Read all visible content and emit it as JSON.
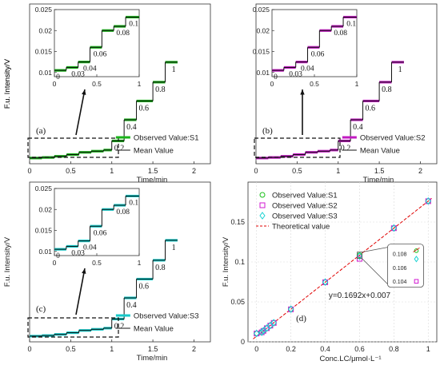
{
  "chart_data": [
    {
      "id": "a",
      "type": "line",
      "panel_label": "(a)",
      "xlabel": "Time/min",
      "ylabel": "F.u. Intensity/V",
      "xlim": [
        0,
        2.2
      ],
      "ylim": [
        0,
        0.28
      ],
      "xticks": [
        0,
        0.5,
        1,
        1.5,
        2
      ],
      "xtick_labels": [
        "0",
        "0.5",
        "1",
        "1.5",
        "2"
      ],
      "color": "#19b319",
      "legend": [
        "Observed Value:S1",
        "Mean Value"
      ],
      "legend_position": "lower-right",
      "segments": [
        {
          "x": [
            0.0,
            0.15
          ],
          "y": 0.01
        },
        {
          "x": [
            0.15,
            0.3
          ],
          "y": 0.011
        },
        {
          "x": [
            0.3,
            0.45
          ],
          "y": 0.013
        },
        {
          "x": [
            0.45,
            0.6
          ],
          "y": 0.016
        },
        {
          "x": [
            0.6,
            0.75
          ],
          "y": 0.02
        },
        {
          "x": [
            0.75,
            0.9
          ],
          "y": 0.022
        },
        {
          "x": [
            0.9,
            1.0
          ],
          "y": 0.024
        },
        {
          "x": [
            1.0,
            1.15
          ],
          "y": 0.04
        },
        {
          "x": [
            1.15,
            1.3
          ],
          "y": 0.077
        },
        {
          "x": [
            1.3,
            1.5
          ],
          "y": 0.11
        },
        {
          "x": [
            1.5,
            1.65
          ],
          "y": 0.143
        },
        {
          "x": [
            1.65,
            1.8
          ],
          "y": 0.178
        }
      ],
      "step_labels": [
        {
          "text": "0.2",
          "x": 1.0,
          "y": 0.04
        },
        {
          "text": "0.4",
          "x": 1.15,
          "y": 0.077
        },
        {
          "text": "0.6",
          "x": 1.3,
          "y": 0.11
        },
        {
          "text": "0.8",
          "x": 1.5,
          "y": 0.143
        },
        {
          "text": "1",
          "x": 1.7,
          "y": 0.178
        }
      ],
      "inset": {
        "xlim": [
          0,
          1
        ],
        "ylim": [
          0.009,
          0.025
        ],
        "xticks": [
          0,
          0.5,
          1
        ],
        "xtick_labels": [
          "0",
          "0.5",
          "1"
        ],
        "yticks": [
          0.01,
          0.015,
          0.02,
          0.025
        ],
        "ytick_labels": [
          "0.01",
          "0.015",
          "0.02",
          "0.025"
        ],
        "segments": [
          {
            "x": [
              0.0,
              0.14
            ],
            "y": 0.0105
          },
          {
            "x": [
              0.14,
              0.28
            ],
            "y": 0.0112
          },
          {
            "x": [
              0.28,
              0.42
            ],
            "y": 0.0125
          },
          {
            "x": [
              0.42,
              0.56
            ],
            "y": 0.016
          },
          {
            "x": [
              0.56,
              0.7
            ],
            "y": 0.02
          },
          {
            "x": [
              0.7,
              0.84
            ],
            "y": 0.021
          },
          {
            "x": [
              0.84,
              1.0
            ],
            "y": 0.0232
          }
        ],
        "labels": [
          {
            "text": "0",
            "x": 0.02,
            "y": 0.0105
          },
          {
            "text": "0.03",
            "x": 0.2,
            "y": 0.0112
          },
          {
            "text": "0.04",
            "x": 0.34,
            "y": 0.0125
          },
          {
            "text": "0.06",
            "x": 0.46,
            "y": 0.016
          },
          {
            "text": "0.08",
            "x": 0.73,
            "y": 0.021
          },
          {
            "text": "0.1",
            "x": 0.88,
            "y": 0.0232
          }
        ]
      }
    },
    {
      "id": "b",
      "type": "line",
      "panel_label": "(b)",
      "xlabel": "Time/min",
      "ylabel": "F.u. Intensity/V",
      "xlim": [
        0,
        2.2
      ],
      "ylim": [
        0,
        0.28
      ],
      "xticks": [
        0,
        0.5,
        1,
        1.5,
        2
      ],
      "xtick_labels": [
        "0",
        "0.5",
        "1",
        "1.5",
        "2"
      ],
      "color": "#c21ac2",
      "legend": [
        "Observed Value:S2",
        "Mean Value"
      ],
      "legend_position": "lower-right",
      "segments": [
        {
          "x": [
            0.0,
            0.15
          ],
          "y": 0.01
        },
        {
          "x": [
            0.15,
            0.3
          ],
          "y": 0.011
        },
        {
          "x": [
            0.3,
            0.45
          ],
          "y": 0.013
        },
        {
          "x": [
            0.45,
            0.6
          ],
          "y": 0.016
        },
        {
          "x": [
            0.6,
            0.75
          ],
          "y": 0.02
        },
        {
          "x": [
            0.75,
            0.9
          ],
          "y": 0.022
        },
        {
          "x": [
            0.9,
            1.0
          ],
          "y": 0.024
        },
        {
          "x": [
            1.0,
            1.15
          ],
          "y": 0.04
        },
        {
          "x": [
            1.15,
            1.3
          ],
          "y": 0.077
        },
        {
          "x": [
            1.3,
            1.5
          ],
          "y": 0.11
        },
        {
          "x": [
            1.5,
            1.65
          ],
          "y": 0.143
        },
        {
          "x": [
            1.65,
            1.8
          ],
          "y": 0.178
        }
      ],
      "step_labels": [
        {
          "text": "0.2",
          "x": 1.0,
          "y": 0.04
        },
        {
          "text": "0.4",
          "x": 1.15,
          "y": 0.077
        },
        {
          "text": "0.6",
          "x": 1.3,
          "y": 0.11
        },
        {
          "text": "0.8",
          "x": 1.5,
          "y": 0.143
        },
        {
          "text": "1",
          "x": 1.7,
          "y": 0.178
        }
      ],
      "inset": {
        "xlim": [
          0,
          1
        ],
        "ylim": [
          0.009,
          0.025
        ],
        "xticks": [
          0,
          0.5,
          1
        ],
        "xtick_labels": [
          "0",
          "0.5",
          "1"
        ],
        "yticks": [
          0.01,
          0.015,
          0.02,
          0.025
        ],
        "ytick_labels": [
          "0.01",
          "0.015",
          "0.02",
          "0.025"
        ],
        "segments": [
          {
            "x": [
              0.0,
              0.14
            ],
            "y": 0.0105
          },
          {
            "x": [
              0.14,
              0.28
            ],
            "y": 0.0112
          },
          {
            "x": [
              0.28,
              0.42
            ],
            "y": 0.0125
          },
          {
            "x": [
              0.42,
              0.56
            ],
            "y": 0.016
          },
          {
            "x": [
              0.56,
              0.7
            ],
            "y": 0.02
          },
          {
            "x": [
              0.7,
              0.84
            ],
            "y": 0.021
          },
          {
            "x": [
              0.84,
              1.0
            ],
            "y": 0.0232
          }
        ],
        "labels": [
          {
            "text": "0",
            "x": 0.02,
            "y": 0.0105
          },
          {
            "text": "0.03",
            "x": 0.2,
            "y": 0.0112
          },
          {
            "text": "0.04",
            "x": 0.34,
            "y": 0.0125
          },
          {
            "text": "0.06",
            "x": 0.46,
            "y": 0.016
          },
          {
            "text": "0.08",
            "x": 0.73,
            "y": 0.021
          },
          {
            "text": "0.1",
            "x": 0.88,
            "y": 0.0232
          }
        ]
      }
    },
    {
      "id": "c",
      "type": "line",
      "panel_label": "(c)",
      "xlabel": "Time/min",
      "ylabel": "F.u. Intensity/V",
      "xlim": [
        0,
        2.2
      ],
      "ylim": [
        0,
        0.28
      ],
      "xticks": [
        0,
        0.5,
        1,
        1.5,
        2
      ],
      "xtick_labels": [
        "0",
        "0.5",
        "1",
        "1.5",
        "2"
      ],
      "color": "#16c9c9",
      "legend": [
        "Observed Value:S3",
        "Mean Value"
      ],
      "legend_position": "lower-right",
      "segments": [
        {
          "x": [
            0.0,
            0.15
          ],
          "y": 0.01
        },
        {
          "x": [
            0.15,
            0.3
          ],
          "y": 0.011
        },
        {
          "x": [
            0.3,
            0.45
          ],
          "y": 0.013
        },
        {
          "x": [
            0.45,
            0.6
          ],
          "y": 0.016
        },
        {
          "x": [
            0.6,
            0.75
          ],
          "y": 0.02
        },
        {
          "x": [
            0.75,
            0.9
          ],
          "y": 0.022
        },
        {
          "x": [
            0.9,
            1.0
          ],
          "y": 0.024
        },
        {
          "x": [
            1.0,
            1.15
          ],
          "y": 0.04
        },
        {
          "x": [
            1.15,
            1.3
          ],
          "y": 0.077
        },
        {
          "x": [
            1.3,
            1.5
          ],
          "y": 0.11
        },
        {
          "x": [
            1.5,
            1.65
          ],
          "y": 0.143
        },
        {
          "x": [
            1.65,
            1.8
          ],
          "y": 0.178
        }
      ],
      "step_labels": [
        {
          "text": "0.2",
          "x": 1.0,
          "y": 0.04
        },
        {
          "text": "0.4",
          "x": 1.15,
          "y": 0.077
        },
        {
          "text": "0.6",
          "x": 1.3,
          "y": 0.11
        },
        {
          "text": "0.8",
          "x": 1.5,
          "y": 0.143
        },
        {
          "text": "1",
          "x": 1.7,
          "y": 0.178
        }
      ],
      "inset": {
        "xlim": [
          0,
          1
        ],
        "ylim": [
          0.009,
          0.025
        ],
        "xticks": [
          0,
          0.5,
          1
        ],
        "xtick_labels": [
          "0",
          "0.5",
          "1"
        ],
        "yticks": [
          0.01,
          0.015,
          0.02,
          0.025
        ],
        "ytick_labels": [
          "0.01",
          "0.015",
          "0.02",
          "0.025"
        ],
        "segments": [
          {
            "x": [
              0.0,
              0.14
            ],
            "y": 0.0105
          },
          {
            "x": [
              0.14,
              0.28
            ],
            "y": 0.0112
          },
          {
            "x": [
              0.28,
              0.42
            ],
            "y": 0.0125
          },
          {
            "x": [
              0.42,
              0.56
            ],
            "y": 0.016
          },
          {
            "x": [
              0.56,
              0.7
            ],
            "y": 0.02
          },
          {
            "x": [
              0.7,
              0.84
            ],
            "y": 0.021
          },
          {
            "x": [
              0.84,
              1.0
            ],
            "y": 0.0232
          }
        ],
        "labels": [
          {
            "text": "0",
            "x": 0.02,
            "y": 0.0105
          },
          {
            "text": "0.03",
            "x": 0.2,
            "y": 0.0112
          },
          {
            "text": "0.04",
            "x": 0.34,
            "y": 0.0125
          },
          {
            "text": "0.06",
            "x": 0.46,
            "y": 0.016
          },
          {
            "text": "0.08",
            "x": 0.73,
            "y": 0.021
          },
          {
            "text": "0.1",
            "x": 0.88,
            "y": 0.0232
          }
        ]
      }
    },
    {
      "id": "d",
      "type": "scatter",
      "panel_label": "(d)",
      "xlabel": "Conc.LC/μmol·L⁻¹",
      "ylabel": "F.u. Intensity/V",
      "xlim": [
        -0.05,
        1.05
      ],
      "ylim": [
        0,
        0.2
      ],
      "xticks": [
        0,
        0.2,
        0.4,
        0.6,
        0.8,
        1
      ],
      "xtick_labels": [
        "0",
        "0.2",
        "0.4",
        "0.6",
        "0.8",
        "1"
      ],
      "yticks": [
        0,
        0.05,
        0.1,
        0.15
      ],
      "ytick_labels": [
        "0",
        "0.05",
        "0.1",
        "0.15"
      ],
      "grid": true,
      "legend_position": "top-left",
      "equation": "y=0.1692x+0.007",
      "fit": {
        "slope": 0.1692,
        "intercept": 0.007,
        "color": "#e00000",
        "name": "Theoretical value"
      },
      "series": [
        {
          "name": "Observed Value:S1",
          "marker": "circle",
          "color": "#19c019",
          "x": [
            0,
            0.03,
            0.04,
            0.06,
            0.08,
            0.1,
            0.2,
            0.4,
            0.6,
            0.8,
            1
          ],
          "y": [
            0.0106,
            0.0121,
            0.0138,
            0.017,
            0.0204,
            0.0238,
            0.0408,
            0.0747,
            0.1084,
            0.1424,
            0.1762
          ]
        },
        {
          "name": "Observed Value:S2",
          "marker": "square",
          "color": "#d21ad2",
          "x": [
            0,
            0.03,
            0.04,
            0.06,
            0.08,
            0.1,
            0.2,
            0.4,
            0.6,
            0.8,
            1
          ],
          "y": [
            0.0104,
            0.0119,
            0.0137,
            0.0171,
            0.0203,
            0.0237,
            0.0407,
            0.0746,
            0.104,
            0.1423,
            0.1761
          ]
        },
        {
          "name": "Observed Value:S3",
          "marker": "diamond",
          "color": "#1ad2d2",
          "x": [
            0,
            0.03,
            0.04,
            0.06,
            0.08,
            0.1,
            0.2,
            0.4,
            0.6,
            0.8,
            1
          ],
          "y": [
            0.0105,
            0.012,
            0.0139,
            0.0172,
            0.0205,
            0.0239,
            0.0409,
            0.0748,
            0.1072,
            0.1425,
            0.1763
          ]
        }
      ],
      "zoom_inset": {
        "yticks": [
          0.104,
          0.106,
          0.108
        ],
        "ytick_labels": [
          "0.104",
          "0.106",
          "0.108"
        ],
        "ylim": [
          0.1035,
          0.109
        ]
      }
    }
  ]
}
